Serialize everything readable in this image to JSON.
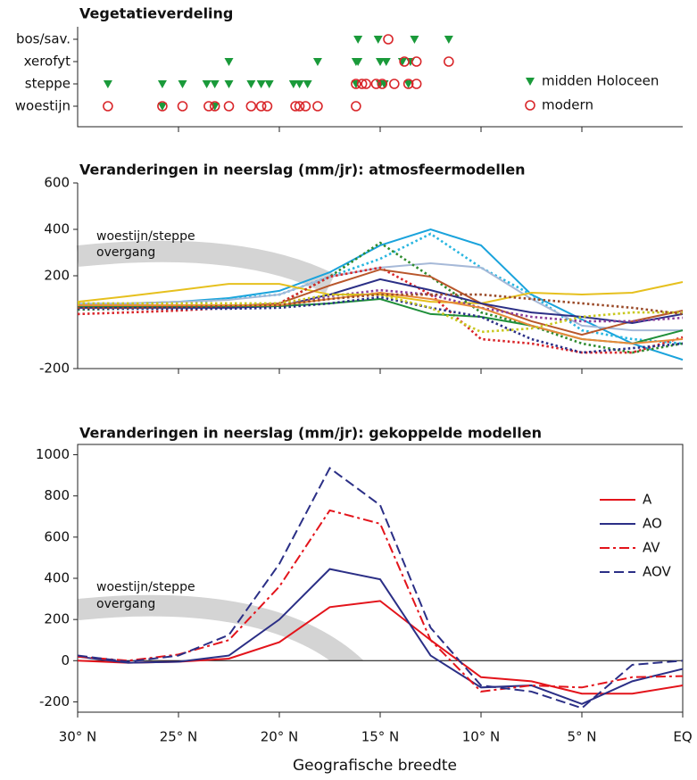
{
  "chart_data": [
    {
      "type": "strip",
      "title": "Vegetatieverdeling",
      "categories": [
        "bos/sav.",
        "xerofyt",
        "steppe",
        "woestijn"
      ],
      "xlim": [
        30,
        0
      ],
      "xticks": [
        25,
        20,
        15,
        10,
        5
      ],
      "legend": "right",
      "series": [
        {
          "name": "midden Holoceen",
          "color": "#1a9a3a",
          "marker": "triangle",
          "x": [
            [
              16.1,
              15.1,
              13.3,
              11.6
            ],
            [
              22.5,
              18.1,
              16.2,
              16.1,
              15.0,
              14.7,
              13.9,
              13.5
            ],
            [
              28.5,
              25.8,
              24.8,
              23.6,
              23.2,
              22.5,
              21.4,
              20.9,
              20.5,
              19.3,
              19.0,
              18.6,
              16.2,
              15.0,
              14.8,
              13.6
            ],
            [
              25.8,
              23.2
            ]
          ]
        },
        {
          "name": "modern",
          "color": "#d9262a",
          "marker": "circle",
          "x": [
            [
              14.6
            ],
            [
              13.8,
              13.2,
              11.6
            ],
            [
              16.2,
              15.9,
              15.7,
              15.2,
              14.9,
              14.3,
              13.6,
              13.2
            ],
            [
              28.5,
              25.8,
              24.8,
              23.5,
              23.2,
              22.5,
              21.4,
              20.9,
              20.6,
              19.2,
              19.0,
              18.7,
              18.1,
              16.2
            ]
          ]
        }
      ]
    },
    {
      "type": "line",
      "title": "Veranderingen in neerslag (mm/jr): atmosfeermodellen",
      "annotation": [
        "woestijn/steppe",
        "overgang"
      ],
      "x": [
        30,
        27.5,
        25,
        22.5,
        20,
        17.5,
        15,
        12.5,
        10,
        7.5,
        5,
        2.5,
        0
      ],
      "xlim": [
        30,
        0
      ],
      "xticks": [
        25,
        20,
        15,
        10,
        5
      ],
      "ylim": [
        -200,
        600
      ],
      "yticks": [
        600,
        400,
        200,
        -200
      ],
      "series": [
        {
          "color": "#1aa3dc",
          "dash": "solid",
          "values": [
            77,
            81,
            88,
            104,
            135,
            215,
            331,
            400,
            331,
            119,
            12,
            -92,
            -162
          ]
        },
        {
          "color": "#29b6e0",
          "dash": "dotted",
          "values": [
            69,
            73,
            81,
            100,
            119,
            196,
            273,
            381,
            235,
            119,
            -35,
            -73,
            -92
          ]
        },
        {
          "color": "#a6b9d8",
          "dash": "solid",
          "values": [
            81,
            81,
            88,
            96,
            119,
            196,
            235,
            254,
            235,
            100,
            -15,
            -35,
            -35
          ]
        },
        {
          "color": "#e6c01e",
          "dash": "solid",
          "values": [
            88,
            112,
            138,
            165,
            165,
            119,
            119,
            88,
            81,
            127,
            119,
            127,
            173
          ]
        },
        {
          "color": "#2e8b2e",
          "dash": "dotted",
          "values": [
            54,
            58,
            65,
            73,
            81,
            196,
            342,
            196,
            42,
            -15,
            -92,
            -131,
            -92
          ]
        },
        {
          "color": "#d9262a",
          "dash": "dotted",
          "values": [
            35,
            42,
            50,
            62,
            81,
            196,
            235,
            119,
            -73,
            -92,
            -131,
            -131,
            -65
          ]
        },
        {
          "color": "#b8562b",
          "dash": "solid",
          "values": [
            62,
            62,
            65,
            69,
            81,
            158,
            227,
            196,
            81,
            4,
            -54,
            4,
            50
          ]
        },
        {
          "color": "#2b2f86",
          "dash": "solid",
          "values": [
            62,
            62,
            62,
            62,
            69,
            119,
            185,
            138,
            81,
            42,
            23,
            -4,
            35
          ]
        },
        {
          "color": "#8a3d9a",
          "dash": "dotted",
          "values": [
            65,
            65,
            69,
            73,
            73,
            112,
            138,
            119,
            62,
            23,
            4,
            4,
            19
          ]
        },
        {
          "color": "#1f8f3a",
          "dash": "solid",
          "values": [
            69,
            69,
            69,
            69,
            69,
            81,
            100,
            35,
            23,
            -15,
            -73,
            -92,
            -35
          ]
        },
        {
          "color": "#e88a3a",
          "dash": "solid",
          "values": [
            73,
            73,
            73,
            73,
            73,
            100,
            127,
            100,
            62,
            -15,
            -73,
            -92,
            -73
          ]
        },
        {
          "color": "#2b2f86",
          "dash": "dotted",
          "values": [
            58,
            58,
            58,
            58,
            62,
            81,
            108,
            62,
            23,
            -73,
            -131,
            -112,
            -92
          ]
        },
        {
          "color": "#c8c81e",
          "dash": "dotted",
          "values": [
            81,
            81,
            81,
            81,
            81,
            119,
            119,
            62,
            -42,
            -27,
            23,
            42,
            42
          ]
        },
        {
          "color": "#9a4a28",
          "dash": "dotted",
          "values": [
            62,
            62,
            65,
            69,
            73,
            100,
            119,
            119,
            119,
            100,
            81,
            62,
            35
          ]
        }
      ]
    },
    {
      "type": "line",
      "title": "Veranderingen in neerslag (mm/jr): gekoppelde modellen",
      "annotation": [
        "woestijn/steppe",
        "overgang"
      ],
      "x": [
        30,
        27.5,
        25,
        22.5,
        20,
        17.5,
        15,
        12.5,
        10,
        7.5,
        5,
        2.5,
        0
      ],
      "xlim": [
        30,
        0
      ],
      "xticks": [
        {
          "value": 30,
          "label": "30° N"
        },
        {
          "value": 25,
          "label": "25° N"
        },
        {
          "value": 20,
          "label": "20° N"
        },
        {
          "value": 15,
          "label": "15° N"
        },
        {
          "value": 10,
          "label": "10° N"
        },
        {
          "value": 5,
          "label": "5° N"
        },
        {
          "value": 0,
          "label": "EQ"
        }
      ],
      "xlabel": "Geografische breedte",
      "ylim": [
        -250,
        1050
      ],
      "yticks": [
        1000,
        800,
        600,
        400,
        200,
        0,
        -200
      ],
      "legend": "upper right",
      "series": [
        {
          "name": "A",
          "color": "#e3141b",
          "dash": "solid",
          "values": [
            0,
            -10,
            -5,
            10,
            90,
            260,
            290,
            100,
            -80,
            -100,
            -160,
            -160,
            -120
          ]
        },
        {
          "name": "AO",
          "color": "#2b2f86",
          "dash": "solid",
          "values": [
            20,
            -10,
            -5,
            25,
            200,
            445,
            395,
            25,
            -130,
            -120,
            -210,
            -100,
            -40
          ]
        },
        {
          "name": "AV",
          "color": "#e3141b",
          "dash": "dashdot",
          "values": [
            20,
            0,
            30,
            100,
            360,
            730,
            665,
            100,
            -150,
            -120,
            -130,
            -80,
            -75
          ]
        },
        {
          "name": "AOV",
          "color": "#2b2f86",
          "dash": "dashed",
          "values": [
            25,
            -5,
            25,
            125,
            470,
            935,
            755,
            160,
            -120,
            -150,
            -230,
            -20,
            0
          ]
        }
      ]
    }
  ]
}
